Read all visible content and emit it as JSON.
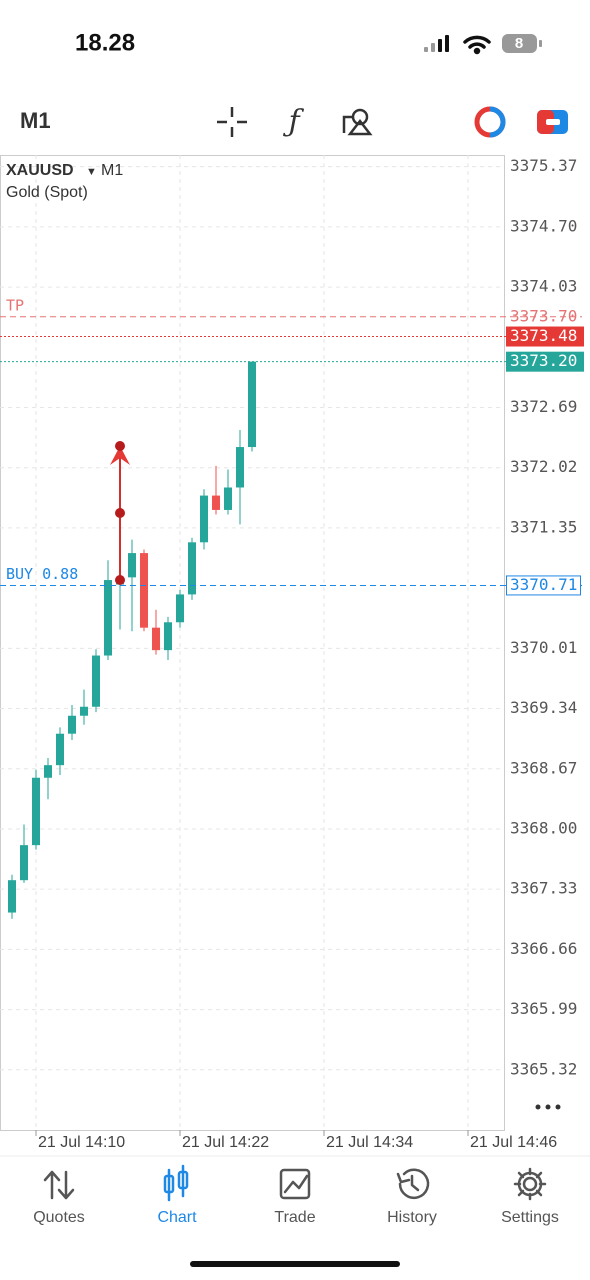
{
  "status_bar": {
    "time": "18.28",
    "battery": "8"
  },
  "toolbar": {
    "timeframe": "M1"
  },
  "chart_data": {
    "type": "candlestick",
    "symbol": "XAUUSD",
    "timeframe": "M1",
    "subtitle": "Gold (Spot)",
    "x": [
      "21 Jul 14:08",
      "21 Jul 14:09",
      "21 Jul 14:10",
      "21 Jul 14:11",
      "21 Jul 14:12",
      "21 Jul 14:13",
      "21 Jul 14:14",
      "21 Jul 14:15",
      "21 Jul 14:16",
      "21 Jul 14:17",
      "21 Jul 14:18",
      "21 Jul 14:19",
      "21 Jul 14:20",
      "21 Jul 14:21",
      "21 Jul 14:22",
      "21 Jul 14:23",
      "21 Jul 14:24",
      "21 Jul 14:25",
      "21 Jul 14:26",
      "21 Jul 14:27",
      "21 Jul 14:28"
    ],
    "open": [
      3367.07,
      3367.43,
      3367.82,
      3368.57,
      3368.71,
      3369.06,
      3369.26,
      3369.36,
      3369.93,
      3370.72,
      3370.8,
      3371.07,
      3370.24,
      3369.99,
      3370.3,
      3370.61,
      3371.19,
      3371.71,
      3371.55,
      3371.8,
      3372.25
    ],
    "high": [
      3367.49,
      3368.05,
      3368.66,
      3368.79,
      3369.13,
      3369.38,
      3369.55,
      3370.0,
      3370.99,
      3371.16,
      3371.22,
      3371.11,
      3370.44,
      3370.36,
      3370.66,
      3371.24,
      3371.78,
      3372.04,
      3372.0,
      3372.44,
      3373.2
    ],
    "low": [
      3367.0,
      3367.4,
      3367.77,
      3368.33,
      3368.6,
      3368.99,
      3369.16,
      3369.3,
      3369.88,
      3370.22,
      3370.2,
      3370.2,
      3369.94,
      3369.88,
      3370.24,
      3370.55,
      3371.11,
      3371.5,
      3371.5,
      3371.39,
      3372.2
    ],
    "close": [
      3367.43,
      3367.82,
      3368.57,
      3368.71,
      3369.06,
      3369.26,
      3369.36,
      3369.93,
      3370.77,
      3370.8,
      3371.07,
      3370.24,
      3369.99,
      3370.3,
      3370.61,
      3371.19,
      3371.71,
      3371.55,
      3371.8,
      3372.25,
      3373.2
    ],
    "up_color": "#26a69a",
    "down_color": "#ef5350",
    "xlim": [
      "21 Jul 14:07",
      "21 Jul 14:49"
    ],
    "xticks": [
      "21 Jul 14:10",
      "21 Jul 14:22",
      "21 Jul 14:34",
      "21 Jul 14:46"
    ],
    "ylim": [
      3364.65,
      3375.5
    ],
    "yticks": [
      3375.37,
      {
        "value": 3374.7,
        "label": "3374.70"
      },
      3374.03,
      3372.69,
      3372.02,
      3371.35,
      3370.01,
      3369.34,
      3368.67,
      {
        "value": 3368,
        "label": "3368.00"
      },
      3367.33,
      3366.66,
      3365.99,
      3365.32
    ],
    "grid": true,
    "price_lines": [
      {
        "name": "TP",
        "value": 3373.7,
        "label": "3373.70",
        "color": "#e57373",
        "style": "dashed"
      },
      {
        "value": 3373.48,
        "color": "#e53935",
        "style": "dotted"
      },
      {
        "value": 3373.2,
        "label": "3373.20",
        "color": "#26a69a",
        "style": "dotted"
      },
      {
        "name": "BUY 0.88",
        "value": 3370.71,
        "color": "#1e88e5",
        "style": "dashed"
      }
    ]
  },
  "nav": {
    "tabs": [
      "Quotes",
      "Chart",
      "Trade",
      "History",
      "Settings"
    ],
    "active_tab": 1
  }
}
